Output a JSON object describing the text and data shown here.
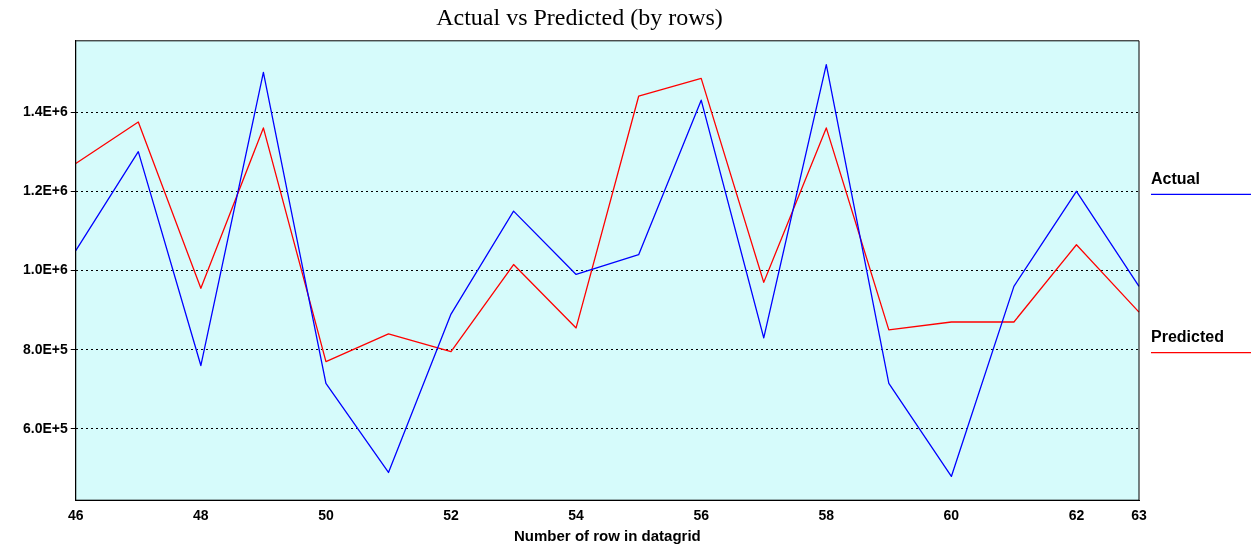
{
  "chart_data": {
    "type": "line",
    "title": "Actual vs Predicted (by rows)",
    "xlabel": "Number of row in datagrid",
    "categories": [
      "46",
      null,
      "48",
      null,
      "50",
      null,
      "52",
      null,
      "54",
      null,
      "56",
      null,
      "58",
      null,
      "60",
      null,
      "62",
      "63"
    ],
    "series": [
      {
        "name": "Actual",
        "color": "#0000ff",
        "values": [
          1050000,
          1300000,
          760000,
          1500000,
          715000,
          490000,
          890000,
          1150000,
          990000,
          1040000,
          1430000,
          830000,
          1520000,
          715000,
          480000,
          960000,
          1200000,
          960000
        ]
      },
      {
        "name": "Predicted",
        "color": "#ff0000",
        "values": [
          1270000,
          1375000,
          955000,
          1360000,
          770000,
          840000,
          795000,
          1015000,
          855000,
          1440000,
          1485000,
          970000,
          1360000,
          850000,
          870000,
          870000,
          1065000,
          895000
        ]
      }
    ],
    "ylim": [
      420000,
      1580000
    ],
    "yticks": [
      {
        "value": 600000,
        "label": "6.0E+5"
      },
      {
        "value": 800000,
        "label": "8.0E+5"
      },
      {
        "value": 1000000,
        "label": "1.0E+6"
      },
      {
        "value": 1200000,
        "label": "1.2E+6"
      },
      {
        "value": 1400000,
        "label": "1.4E+6"
      }
    ],
    "grid": "y",
    "legend": "right",
    "marker": "none",
    "line_style": "solid"
  }
}
